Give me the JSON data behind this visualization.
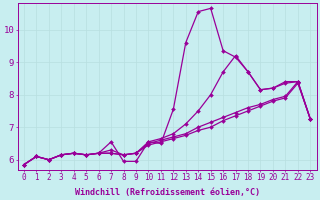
{
  "title": "",
  "xlabel": "Windchill (Refroidissement éolien,°C)",
  "ylabel": "",
  "bg_color": "#c8eef0",
  "line_color": "#990099",
  "grid_color": "#b8dfe0",
  "xlim": [
    -0.5,
    23.5
  ],
  "ylim": [
    5.7,
    10.8
  ],
  "yticks": [
    6,
    7,
    8,
    9,
    10
  ],
  "xticks": [
    0,
    1,
    2,
    3,
    4,
    5,
    6,
    7,
    8,
    9,
    10,
    11,
    12,
    13,
    14,
    15,
    16,
    17,
    18,
    19,
    20,
    21,
    22,
    23
  ],
  "series": [
    [
      5.85,
      6.1,
      6.0,
      6.15,
      6.2,
      6.15,
      6.2,
      6.55,
      5.95,
      5.95,
      6.55,
      6.5,
      7.55,
      9.6,
      10.55,
      10.65,
      9.35,
      9.15,
      8.7,
      8.15,
      8.2,
      8.4,
      8.4,
      7.25
    ],
    [
      5.85,
      6.1,
      6.0,
      6.15,
      6.2,
      6.15,
      6.2,
      6.2,
      6.15,
      6.2,
      6.5,
      6.6,
      6.7,
      6.8,
      7.0,
      7.15,
      7.3,
      7.45,
      7.6,
      7.7,
      7.85,
      7.95,
      8.4,
      7.25
    ],
    [
      5.85,
      6.1,
      6.0,
      6.15,
      6.2,
      6.15,
      6.2,
      6.2,
      6.15,
      6.2,
      6.45,
      6.55,
      6.65,
      6.75,
      6.9,
      7.0,
      7.2,
      7.35,
      7.5,
      7.65,
      7.8,
      7.9,
      8.35,
      7.25
    ],
    [
      5.85,
      6.1,
      6.0,
      6.15,
      6.2,
      6.15,
      6.2,
      6.3,
      6.15,
      6.2,
      6.55,
      6.65,
      6.8,
      7.1,
      7.5,
      8.0,
      8.7,
      9.2,
      8.7,
      8.15,
      8.2,
      8.35,
      8.4,
      7.25
    ]
  ],
  "marker": "D",
  "markersize": 2.0,
  "linewidth": 0.9,
  "tick_fontsize": 5.5,
  "xlabel_fontsize": 6.0
}
